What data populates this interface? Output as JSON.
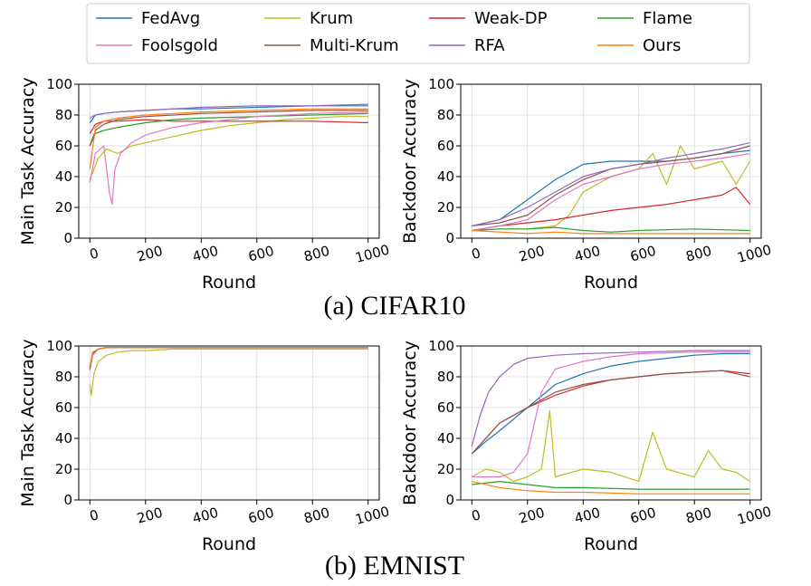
{
  "legend": {
    "entries": [
      {
        "name": "FedAvg",
        "color": "#1f77b4"
      },
      {
        "name": "Krum",
        "color": "#bcbd22"
      },
      {
        "name": "Weak-DP",
        "color": "#d62728"
      },
      {
        "name": "Flame",
        "color": "#2ca02c"
      },
      {
        "name": "Foolsgold",
        "color": "#e377c2"
      },
      {
        "name": "Multi-Krum",
        "color": "#8c564b"
      },
      {
        "name": "RFA",
        "color": "#9467bd"
      },
      {
        "name": "Ours",
        "color": "#ff7f0e"
      }
    ]
  },
  "captions": {
    "a": "(a) CIFAR10",
    "b": "(b) EMNIST"
  },
  "chart_data": [
    {
      "id": "cifar_main",
      "type": "line",
      "xlabel": "Round",
      "ylabel": "Main Task Accuracy",
      "xlim": [
        0,
        1000
      ],
      "ylim": [
        0,
        100
      ],
      "xticks": [
        "0",
        "200",
        "400",
        "600",
        "800",
        "1000"
      ],
      "yticks": [
        "0",
        "20",
        "40",
        "60",
        "80",
        "100"
      ],
      "grid": true,
      "series": [
        {
          "name": "FedAvg",
          "x": [
            0,
            20,
            50,
            100,
            200,
            300,
            400,
            600,
            800,
            1000
          ],
          "y": [
            75,
            80,
            81,
            82,
            83,
            84,
            84,
            85,
            86,
            86
          ]
        },
        {
          "name": "Krum",
          "x": [
            0,
            30,
            60,
            100,
            150,
            200,
            300,
            400,
            500,
            600,
            700,
            800,
            900,
            1000
          ],
          "y": [
            38,
            52,
            58,
            55,
            60,
            62,
            66,
            70,
            73,
            75,
            77,
            78,
            79,
            79
          ]
        },
        {
          "name": "Weak-DP",
          "x": [
            0,
            20,
            50,
            100,
            200,
            300,
            400,
            600,
            800,
            1000
          ],
          "y": [
            68,
            74,
            76,
            76,
            77,
            76,
            76,
            76,
            76,
            75
          ]
        },
        {
          "name": "Flame",
          "x": [
            0,
            20,
            50,
            100,
            200,
            300,
            400,
            600,
            800,
            1000
          ],
          "y": [
            60,
            68,
            70,
            72,
            75,
            77,
            78,
            79,
            80,
            81
          ]
        },
        {
          "name": "Foolsgold",
          "x": [
            0,
            20,
            50,
            70,
            80,
            90,
            110,
            150,
            200,
            300,
            400,
            500,
            600,
            800,
            1000
          ],
          "y": [
            36,
            55,
            60,
            30,
            22,
            45,
            55,
            62,
            67,
            72,
            75,
            77,
            79,
            81,
            82
          ]
        },
        {
          "name": "Multi-Krum",
          "x": [
            0,
            20,
            50,
            100,
            200,
            300,
            400,
            600,
            800,
            1000
          ],
          "y": [
            60,
            70,
            74,
            77,
            79,
            80,
            81,
            82,
            83,
            83
          ]
        },
        {
          "name": "RFA",
          "x": [
            0,
            20,
            50,
            100,
            200,
            300,
            400,
            600,
            800,
            1000
          ],
          "y": [
            78,
            80,
            81,
            82,
            83,
            84,
            85,
            86,
            86,
            87
          ]
        },
        {
          "name": "Ours",
          "x": [
            0,
            20,
            50,
            100,
            200,
            300,
            400,
            600,
            800,
            1000
          ],
          "y": [
            45,
            72,
            76,
            78,
            80,
            81,
            82,
            83,
            84,
            84
          ]
        }
      ]
    },
    {
      "id": "cifar_backdoor",
      "type": "line",
      "xlabel": "Round",
      "ylabel": "Backdoor Accuracy",
      "xlim": [
        0,
        1000
      ],
      "ylim": [
        0,
        100
      ],
      "xticks": [
        "0",
        "200",
        "400",
        "600",
        "800",
        "1000"
      ],
      "yticks": [
        "0",
        "20",
        "40",
        "60",
        "80",
        "100"
      ],
      "grid": true,
      "series": [
        {
          "name": "FedAvg",
          "x": [
            0,
            100,
            200,
            300,
            400,
            500,
            600,
            700,
            800,
            900,
            1000
          ],
          "y": [
            8,
            12,
            25,
            38,
            48,
            50,
            50,
            50,
            52,
            55,
            57
          ]
        },
        {
          "name": "Krum",
          "x": [
            0,
            100,
            200,
            300,
            350,
            400,
            500,
            600,
            650,
            700,
            750,
            800,
            900,
            950,
            1000
          ],
          "y": [
            5,
            6,
            6,
            8,
            15,
            30,
            40,
            45,
            55,
            35,
            60,
            45,
            50,
            35,
            50
          ]
        },
        {
          "name": "Weak-DP",
          "x": [
            0,
            100,
            200,
            300,
            400,
            500,
            600,
            700,
            800,
            900,
            950,
            1000
          ],
          "y": [
            5,
            8,
            10,
            12,
            15,
            18,
            20,
            22,
            25,
            28,
            33,
            22
          ]
        },
        {
          "name": "Flame",
          "x": [
            0,
            100,
            200,
            300,
            400,
            500,
            600,
            800,
            1000
          ],
          "y": [
            5,
            6,
            6,
            7,
            5,
            4,
            5,
            6,
            5
          ]
        },
        {
          "name": "Foolsgold",
          "x": [
            0,
            100,
            200,
            300,
            400,
            500,
            600,
            700,
            800,
            900,
            1000
          ],
          "y": [
            5,
            8,
            12,
            25,
            35,
            40,
            45,
            48,
            50,
            52,
            55
          ]
        },
        {
          "name": "Multi-Krum",
          "x": [
            0,
            100,
            200,
            300,
            400,
            500,
            600,
            700,
            800,
            900,
            1000
          ],
          "y": [
            8,
            10,
            15,
            28,
            38,
            45,
            48,
            50,
            52,
            55,
            60
          ]
        },
        {
          "name": "RFA",
          "x": [
            0,
            100,
            200,
            300,
            400,
            500,
            600,
            700,
            800,
            900,
            1000
          ],
          "y": [
            8,
            12,
            20,
            30,
            40,
            45,
            48,
            52,
            55,
            58,
            62
          ]
        },
        {
          "name": "Ours",
          "x": [
            0,
            100,
            200,
            300,
            400,
            500,
            600,
            800,
            1000
          ],
          "y": [
            5,
            4,
            3,
            4,
            3,
            3,
            3,
            3,
            3
          ]
        }
      ]
    },
    {
      "id": "emnist_main",
      "type": "line",
      "xlabel": "Round",
      "ylabel": "Main Task Accuracy",
      "xlim": [
        0,
        1000
      ],
      "ylim": [
        0,
        100
      ],
      "xticks": [
        "0",
        "200",
        "400",
        "600",
        "800",
        "1000"
      ],
      "yticks": [
        "0",
        "20",
        "40",
        "60",
        "80",
        "100"
      ],
      "grid": true,
      "series": [
        {
          "name": "FedAvg",
          "x": [
            0,
            10,
            30,
            60,
            100,
            200,
            400,
            1000
          ],
          "y": [
            85,
            95,
            98,
            99,
            99,
            99,
            99,
            99
          ]
        },
        {
          "name": "Krum",
          "x": [
            0,
            5,
            15,
            30,
            60,
            100,
            150,
            200,
            300,
            400,
            1000
          ],
          "y": [
            75,
            68,
            82,
            90,
            94,
            96,
            97,
            97,
            98,
            98,
            98
          ]
        },
        {
          "name": "Weak-DP",
          "x": [
            0,
            10,
            30,
            60,
            100,
            200,
            400,
            1000
          ],
          "y": [
            85,
            95,
            98,
            99,
            99,
            99,
            99,
            99
          ]
        },
        {
          "name": "Flame",
          "x": [
            0,
            10,
            30,
            60,
            100,
            200,
            400,
            1000
          ],
          "y": [
            86,
            95,
            98,
            99,
            99,
            99,
            99,
            99
          ]
        },
        {
          "name": "Foolsgold",
          "x": [
            0,
            10,
            30,
            60,
            100,
            200,
            400,
            1000
          ],
          "y": [
            84,
            94,
            98,
            99,
            99,
            99,
            99,
            99
          ]
        },
        {
          "name": "Multi-Krum",
          "x": [
            0,
            10,
            30,
            60,
            100,
            200,
            400,
            1000
          ],
          "y": [
            85,
            95,
            98,
            99,
            99,
            99,
            99,
            99
          ]
        },
        {
          "name": "RFA",
          "x": [
            0,
            10,
            30,
            60,
            100,
            200,
            400,
            1000
          ],
          "y": [
            86,
            95,
            98,
            99,
            99,
            99,
            99,
            99
          ]
        },
        {
          "name": "Ours",
          "x": [
            0,
            10,
            30,
            60,
            100,
            200,
            400,
            1000
          ],
          "y": [
            86,
            96,
            98,
            99,
            99,
            99,
            99,
            99
          ]
        }
      ]
    },
    {
      "id": "emnist_backdoor",
      "type": "line",
      "xlabel": "Round",
      "ylabel": "Backdoor Accuracy",
      "xlim": [
        0,
        1000
      ],
      "ylim": [
        0,
        100
      ],
      "xticks": [
        "0",
        "200",
        "400",
        "600",
        "800",
        "1000"
      ],
      "yticks": [
        "0",
        "20",
        "40",
        "60",
        "80",
        "100"
      ],
      "grid": true,
      "series": [
        {
          "name": "FedAvg",
          "x": [
            0,
            50,
            100,
            200,
            300,
            400,
            500,
            600,
            700,
            800,
            900,
            1000
          ],
          "y": [
            30,
            38,
            45,
            60,
            75,
            82,
            87,
            90,
            92,
            94,
            95,
            95
          ]
        },
        {
          "name": "Krum",
          "x": [
            0,
            50,
            100,
            150,
            200,
            250,
            280,
            300,
            400,
            500,
            600,
            650,
            700,
            800,
            850,
            900,
            950,
            1000
          ],
          "y": [
            15,
            20,
            18,
            12,
            15,
            20,
            58,
            15,
            20,
            18,
            12,
            44,
            20,
            15,
            32,
            20,
            18,
            12
          ]
        },
        {
          "name": "Weak-DP",
          "x": [
            0,
            50,
            100,
            200,
            300,
            400,
            500,
            600,
            700,
            800,
            900,
            1000
          ],
          "y": [
            30,
            40,
            50,
            60,
            68,
            74,
            78,
            80,
            82,
            83,
            84,
            82
          ]
        },
        {
          "name": "Flame",
          "x": [
            0,
            100,
            200,
            300,
            400,
            600,
            800,
            1000
          ],
          "y": [
            10,
            12,
            10,
            8,
            8,
            7,
            7,
            7
          ]
        },
        {
          "name": "Foolsgold",
          "x": [
            0,
            100,
            150,
            200,
            250,
            300,
            400,
            500,
            600,
            800,
            1000
          ],
          "y": [
            15,
            15,
            18,
            30,
            70,
            85,
            90,
            93,
            95,
            96,
            96
          ]
        },
        {
          "name": "Multi-Krum",
          "x": [
            0,
            50,
            100,
            200,
            300,
            400,
            500,
            600,
            700,
            800,
            900,
            1000
          ],
          "y": [
            30,
            40,
            50,
            60,
            70,
            75,
            78,
            80,
            82,
            83,
            84,
            80
          ]
        },
        {
          "name": "RFA",
          "x": [
            0,
            30,
            60,
            100,
            150,
            200,
            300,
            400,
            600,
            800,
            1000
          ],
          "y": [
            35,
            55,
            70,
            80,
            88,
            92,
            94,
            95,
            96,
            97,
            97
          ]
        },
        {
          "name": "Ours",
          "x": [
            0,
            100,
            200,
            300,
            400,
            600,
            800,
            1000
          ],
          "y": [
            12,
            8,
            6,
            5,
            5,
            4,
            4,
            4
          ]
        }
      ]
    }
  ]
}
